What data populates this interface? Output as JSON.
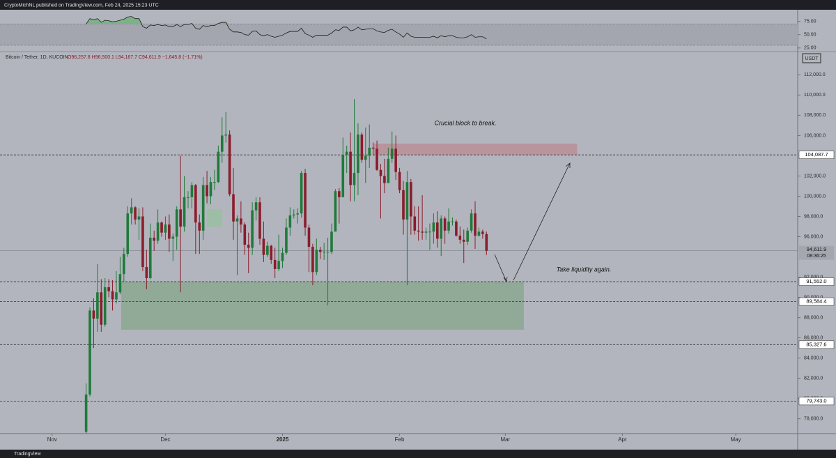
{
  "header": "CryptoMichNL published on TradingView.com, Feb 24, 2025 15:23 UTC",
  "footer": "TradingView",
  "chart_data": [
    {
      "type": "candlestick",
      "legend": "Bitcoin / Tether, 1D, KUCOIN",
      "ohlc_text": "O96,257.8 H96,500.1 L94,187.7 C94,611.9 −1,645.8 (−1.71%)",
      "currency": "USDT",
      "annotations": [
        "Crucial block to break.",
        "Take liquidity again."
      ],
      "last_price": {
        "value": 94611.9,
        "label": "94,611.9",
        "countdown": "08:36:25"
      },
      "xlim": [
        -13.8,
        197.4
      ],
      "ylim": [
        76530,
        114300
      ],
      "xticks": [
        {
          "value": 0,
          "label": "Nov"
        },
        {
          "value": 30,
          "label": "Dec"
        },
        {
          "value": 61,
          "label": "2025"
        },
        {
          "value": 92,
          "label": "Feb"
        },
        {
          "value": 120,
          "label": "Mar"
        },
        {
          "value": 151,
          "label": "Apr"
        },
        {
          "value": 181,
          "label": "May"
        }
      ],
      "yticks": [
        {
          "value": 78000,
          "label": "78,000.0"
        },
        {
          "value": 80000,
          "label": "80,000.0"
        },
        {
          "value": 82000,
          "label": "82,000.0"
        },
        {
          "value": 84000,
          "label": "84,000.0"
        },
        {
          "value": 86000,
          "label": "86,000.0"
        },
        {
          "value": 88000,
          "label": "88,000.0"
        },
        {
          "value": 90000,
          "label": "90,000.0"
        },
        {
          "value": 92000,
          "label": "92,000.0"
        },
        {
          "value": 96000,
          "label": "96,000.0"
        },
        {
          "value": 98000,
          "label": "98,000.0"
        },
        {
          "value": 100000,
          "label": "100,000.0"
        },
        {
          "value": 102000,
          "label": "102,000.0"
        },
        {
          "value": 106000,
          "label": "106,000.0"
        },
        {
          "value": 108000,
          "label": "108,000.0"
        },
        {
          "value": 110000,
          "label": "110,000.0"
        },
        {
          "value": 112000,
          "label": "112,000.0"
        }
      ],
      "levels": [
        {
          "value": 104087.7,
          "label": "104,087.7"
        },
        {
          "value": 91552.0,
          "label": "91,552.0"
        },
        {
          "value": 89584.4,
          "label": "89,584.4"
        },
        {
          "value": 85327.6,
          "label": "85,327.6"
        },
        {
          "value": 79743.0,
          "label": "79,743.0"
        }
      ],
      "zones": [
        {
          "x0": 18.3,
          "x1": 124.9,
          "y0": 86800,
          "y1": 91552,
          "color": "#8aa891"
        },
        {
          "x0": 85.2,
          "x1": 139,
          "y0": 104087.7,
          "y1": 105200,
          "color": "#b88e96"
        },
        {
          "x0": 41,
          "x1": 45,
          "y0": 97000,
          "y1": 98700,
          "color": "#98c0a0"
        }
      ],
      "up_color": "#1f7a3a",
      "down_color": "#8a1c2c",
      "x": [
        9,
        10,
        11,
        12,
        13,
        14,
        15,
        16,
        17,
        18,
        19,
        20,
        21,
        22,
        23,
        24,
        25,
        26,
        27,
        28,
        29,
        30,
        31,
        32,
        33,
        34,
        35,
        36,
        37,
        38,
        39,
        40,
        41,
        42,
        43,
        44,
        45,
        46,
        47,
        48,
        49,
        50,
        51,
        52,
        53,
        54,
        55,
        56,
        57,
        58,
        59,
        60,
        61,
        62,
        63,
        64,
        65,
        66,
        67,
        68,
        69,
        70,
        71,
        72,
        73,
        74,
        75,
        76,
        77,
        78,
        79,
        80,
        81,
        82,
        83,
        84,
        85,
        86,
        87,
        88,
        89,
        90,
        91,
        92,
        93,
        94,
        95,
        96,
        97,
        98,
        99,
        100,
        101,
        102,
        103,
        104,
        105,
        106,
        107,
        108,
        109,
        110,
        111,
        112,
        113,
        114,
        115
      ],
      "open": [
        76700,
        80400,
        88700,
        87900,
        90500,
        87300,
        91000,
        90600,
        89800,
        90500,
        92300,
        94300,
        98300,
        98900,
        97700,
        98000,
        93000,
        91900,
        95900,
        95600,
        97400,
        96400,
        97200,
        95800,
        96000,
        98700,
        97000,
        99900,
        99900,
        101100,
        97400,
        96600,
        101100,
        100000,
        101400,
        101400,
        104400,
        106000,
        106100,
        100200,
        97500,
        97800,
        97200,
        95200,
        94900,
        98600,
        99400,
        95800,
        94200,
        95100,
        93700,
        92800,
        93600,
        94400,
        96900,
        98100,
        98200,
        98300,
        102300,
        96900,
        95000,
        92500,
        94700,
        94500,
        94500,
        94500,
        96500,
        100500,
        99900,
        104100,
        104400,
        101100,
        102300,
        106100,
        103600,
        104000,
        104800,
        104700,
        102600,
        102000,
        101300,
        103700,
        104700,
        102400,
        100600,
        97700,
        101400,
        98000,
        96600,
        96500,
        96400,
        96500,
        96500,
        97400,
        95800,
        97800,
        96600,
        97500,
        97500,
        96100,
        95700,
        95500,
        96600,
        98300,
        96100,
        96500,
        96257.8
      ],
      "high": [
        81500,
        89000,
        89900,
        93300,
        91800,
        91900,
        91800,
        91700,
        92600,
        94000,
        94900,
        99000,
        99800,
        99000,
        98800,
        98900,
        94700,
        97300,
        96600,
        98700,
        97500,
        98000,
        98200,
        96300,
        99000,
        104000,
        102000,
        100500,
        101400,
        101200,
        98200,
        101900,
        102500,
        101900,
        102600,
        105000,
        107800,
        108300,
        106500,
        102800,
        98100,
        99500,
        97400,
        96400,
        99400,
        99900,
        99900,
        97500,
        95500,
        95200,
        94900,
        96200,
        94900,
        97800,
        98900,
        98700,
        98800,
        102500,
        102700,
        97200,
        95300,
        95800,
        95000,
        95400,
        95900,
        97300,
        100700,
        100800,
        105800,
        105000,
        106300,
        109600,
        107200,
        106300,
        106800,
        107100,
        105300,
        105500,
        103200,
        103700,
        104800,
        106400,
        106000,
        102800,
        101500,
        102500,
        101700,
        99000,
        99000,
        100100,
        96900,
        97300,
        98300,
        98500,
        98100,
        98000,
        98800,
        97900,
        97700,
        97000,
        96700,
        96900,
        98700,
        99500,
        96900,
        96700,
        96500.1
      ],
      "low": [
        76500,
        80200,
        85000,
        86600,
        86600,
        87100,
        90000,
        88700,
        89400,
        90300,
        91500,
        94000,
        97200,
        97200,
        95700,
        92600,
        90800,
        91800,
        94600,
        95300,
        96000,
        95700,
        94500,
        93600,
        94700,
        90500,
        96500,
        98800,
        98800,
        94300,
        94300,
        95700,
        99300,
        99200,
        100600,
        101300,
        103300,
        105300,
        100000,
        95700,
        92200,
        96400,
        94200,
        92400,
        94200,
        97600,
        95200,
        93500,
        94000,
        93300,
        91900,
        92600,
        92900,
        94200,
        96100,
        97800,
        97300,
        97900,
        96100,
        92500,
        91200,
        92200,
        93800,
        93700,
        89200,
        94300,
        96500,
        97300,
        99900,
        102300,
        99500,
        99500,
        100100,
        103300,
        101300,
        102800,
        104100,
        102500,
        97800,
        100300,
        101300,
        103300,
        101600,
        100300,
        96200,
        91200,
        96200,
        96200,
        95600,
        95700,
        95700,
        94700,
        95300,
        94900,
        94100,
        95300,
        96300,
        97100,
        96000,
        95300,
        93400,
        95200,
        96400,
        94800,
        96000,
        95800,
        94187.7
      ],
      "close": [
        80400,
        88700,
        87900,
        90500,
        87300,
        91000,
        90600,
        89800,
        90500,
        92300,
        94300,
        98300,
        98900,
        97700,
        98000,
        93000,
        91900,
        95900,
        95600,
        97400,
        96400,
        97200,
        95800,
        96000,
        98700,
        97000,
        99900,
        99900,
        101100,
        97400,
        96600,
        101100,
        100000,
        101400,
        101400,
        104400,
        106000,
        106100,
        100200,
        97500,
        97800,
        97200,
        95200,
        94900,
        98600,
        99400,
        95800,
        94200,
        95100,
        93700,
        92800,
        93600,
        94400,
        96900,
        98100,
        98200,
        98300,
        102300,
        96900,
        95000,
        92500,
        94700,
        94500,
        94500,
        94500,
        96500,
        100500,
        99900,
        104100,
        104400,
        101100,
        102300,
        106100,
        103600,
        104000,
        104800,
        104700,
        102600,
        102000,
        101300,
        103700,
        104700,
        102400,
        100600,
        97700,
        101400,
        98000,
        96600,
        96500,
        96400,
        96500,
        96500,
        97400,
        95800,
        97800,
        96600,
        97500,
        97500,
        96100,
        95700,
        95500,
        96600,
        98300,
        96100,
        96500,
        96257.8,
        94611.9
      ]
    },
    {
      "type": "line",
      "color": "#1a1a1a",
      "overbought_color": "#6fb27c",
      "band": [
        30,
        70
      ],
      "xlim": [
        -13.8,
        197.4
      ],
      "ylim": [
        18.2,
        96.6
      ],
      "yticks": [
        {
          "value": 75,
          "label": "75.00"
        },
        {
          "value": 50,
          "label": "50.00"
        },
        {
          "value": 25,
          "label": "25.00"
        }
      ],
      "x": [
        9,
        10,
        11,
        12,
        13,
        14,
        15,
        16,
        17,
        18,
        19,
        20,
        21,
        22,
        23,
        24,
        25,
        26,
        27,
        28,
        29,
        30,
        31,
        32,
        33,
        34,
        35,
        36,
        37,
        38,
        39,
        40,
        41,
        42,
        43,
        44,
        45,
        46,
        47,
        48,
        49,
        50,
        51,
        52,
        53,
        54,
        55,
        56,
        57,
        58,
        59,
        60,
        61,
        62,
        63,
        64,
        65,
        66,
        67,
        68,
        69,
        70,
        71,
        72,
        73,
        74,
        75,
        76,
        77,
        78,
        79,
        80,
        81,
        82,
        83,
        84,
        85,
        86,
        87,
        88,
        89,
        90,
        91,
        92,
        93,
        94,
        95,
        96,
        97,
        98,
        99,
        100,
        101,
        102,
        103,
        104,
        105,
        106,
        107,
        108,
        109,
        110,
        111,
        112,
        113,
        114,
        115
      ],
      "values": [
        70,
        80,
        78,
        80,
        73,
        77,
        76,
        74,
        75,
        77,
        79,
        83,
        84,
        80,
        80,
        65,
        62,
        68,
        67,
        69,
        67,
        68,
        65,
        65,
        69,
        65,
        69,
        69,
        71,
        62,
        60,
        67,
        65,
        67,
        67,
        71,
        73,
        73,
        60,
        55,
        55,
        54,
        50,
        49,
        56,
        57,
        50,
        48,
        50,
        47,
        45,
        47,
        49,
        53,
        56,
        56,
        56,
        62,
        52,
        49,
        45,
        49,
        49,
        49,
        49,
        53,
        59,
        58,
        64,
        64,
        57,
        59,
        64,
        59,
        60,
        61,
        61,
        57,
        55,
        54,
        58,
        60,
        55,
        51,
        45,
        53,
        47,
        45,
        45,
        45,
        45,
        45,
        47,
        44,
        48,
        46,
        48,
        48,
        45,
        44,
        44,
        46,
        50,
        45,
        46,
        46,
        42
      ]
    }
  ]
}
